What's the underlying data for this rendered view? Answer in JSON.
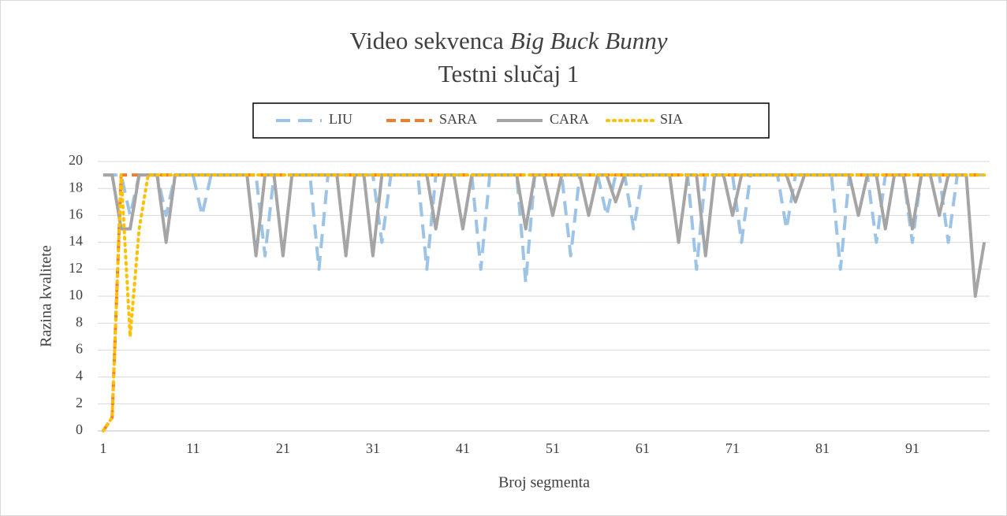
{
  "chart_data": {
    "type": "line",
    "title_parts": [
      {
        "text": "Video sekvenca",
        "italic": false
      },
      {
        "text": "Big Buck Bunny",
        "italic": true
      }
    ],
    "subtitle": "Testni slučaj 1",
    "x_label": "Broj segmenta",
    "y_label": "Razina kvalitete",
    "x": [
      1,
      2,
      3,
      4,
      5,
      6,
      7,
      8,
      9,
      10,
      11,
      12,
      13,
      14,
      15,
      16,
      17,
      18,
      19,
      20,
      21,
      22,
      23,
      24,
      25,
      26,
      27,
      28,
      29,
      30,
      31,
      32,
      33,
      34,
      35,
      36,
      37,
      38,
      39,
      40,
      41,
      42,
      43,
      44,
      45,
      46,
      47,
      48,
      49,
      50,
      51,
      52,
      53,
      54,
      55,
      56,
      57,
      58,
      59,
      60,
      61,
      62,
      63,
      64,
      65,
      66,
      67,
      68,
      69,
      70,
      71,
      72,
      73,
      74,
      75,
      76,
      77,
      78,
      79,
      80,
      81,
      82,
      83,
      84,
      85,
      86,
      87,
      88,
      89,
      90,
      91,
      92,
      93,
      94,
      95,
      96,
      97,
      98,
      99
    ],
    "xlim": [
      0.4,
      99.6
    ],
    "xticks": [
      1,
      11,
      21,
      31,
      41,
      51,
      61,
      71,
      81,
      91
    ],
    "ylim": [
      0,
      20
    ],
    "yticks": [
      0,
      2,
      4,
      6,
      8,
      10,
      12,
      14,
      16,
      18,
      20
    ],
    "grid": true,
    "legend": "top",
    "series": [
      {
        "name": "LIU",
        "color": "#9dc3e6",
        "dash": "dash",
        "values": [
          19,
          19,
          19,
          16,
          19,
          19,
          19,
          16,
          19,
          19,
          19,
          16,
          19,
          19,
          19,
          19,
          19,
          19,
          13,
          19,
          19,
          19,
          19,
          19,
          12,
          19,
          19,
          19,
          19,
          19,
          19,
          14,
          19,
          19,
          19,
          19,
          12,
          19,
          19,
          19,
          19,
          19,
          12,
          19,
          19,
          19,
          19,
          11,
          19,
          19,
          19,
          19,
          13,
          19,
          19,
          19,
          16,
          19,
          19,
          15,
          19,
          19,
          19,
          19,
          19,
          19,
          12,
          19,
          19,
          19,
          19,
          14,
          19,
          19,
          19,
          19,
          15,
          19,
          19,
          19,
          19,
          19,
          12,
          19,
          19,
          19,
          14,
          19,
          19,
          19,
          14,
          19,
          19,
          19,
          14,
          19,
          19,
          19,
          19
        ]
      },
      {
        "name": "SARA",
        "color": "#ed7d31",
        "dash": "shortdash",
        "values": [
          0,
          1,
          19,
          19,
          19,
          19,
          19,
          19,
          19,
          19,
          19,
          19,
          19,
          19,
          19,
          19,
          19,
          19,
          19,
          19,
          19,
          19,
          19,
          19,
          19,
          19,
          19,
          19,
          19,
          19,
          19,
          19,
          19,
          19,
          19,
          19,
          19,
          19,
          19,
          19,
          19,
          19,
          19,
          19,
          19,
          19,
          19,
          19,
          19,
          19,
          19,
          19,
          19,
          19,
          19,
          19,
          19,
          19,
          19,
          19,
          19,
          19,
          19,
          19,
          19,
          19,
          19,
          19,
          19,
          19,
          19,
          19,
          19,
          19,
          19,
          19,
          19,
          19,
          19,
          19,
          19,
          19,
          19,
          19,
          19,
          19,
          19,
          19,
          19,
          19,
          19,
          19,
          19,
          19,
          19,
          19,
          19,
          19,
          19
        ]
      },
      {
        "name": "CARA",
        "color": "#a5a5a5",
        "dash": "solid",
        "values": [
          19,
          19,
          15,
          15,
          19,
          19,
          19,
          14,
          19,
          19,
          19,
          19,
          19,
          19,
          19,
          19,
          19,
          13,
          19,
          19,
          13,
          19,
          19,
          19,
          19,
          19,
          19,
          13,
          19,
          19,
          13,
          19,
          19,
          19,
          19,
          19,
          19,
          15,
          19,
          19,
          15,
          19,
          19,
          19,
          19,
          19,
          19,
          15,
          19,
          19,
          16,
          19,
          19,
          19,
          16,
          19,
          19,
          17,
          19,
          19,
          19,
          19,
          19,
          19,
          14,
          19,
          19,
          13,
          19,
          19,
          16,
          19,
          19,
          19,
          19,
          19,
          19,
          17,
          19,
          19,
          19,
          19,
          19,
          19,
          16,
          19,
          19,
          15,
          19,
          19,
          15,
          19,
          19,
          16,
          19,
          19,
          19,
          10,
          14
        ]
      },
      {
        "name": "SIA",
        "color": "#ffc000",
        "dash": "dot",
        "values": [
          0,
          1,
          19,
          7,
          15,
          19,
          19,
          19,
          19,
          19,
          19,
          19,
          19,
          19,
          19,
          19,
          19,
          19,
          19,
          19,
          19,
          19,
          19,
          19,
          19,
          19,
          19,
          19,
          19,
          19,
          19,
          19,
          19,
          19,
          19,
          19,
          19,
          19,
          19,
          19,
          19,
          19,
          19,
          19,
          19,
          19,
          19,
          19,
          19,
          19,
          19,
          19,
          19,
          19,
          19,
          19,
          19,
          19,
          19,
          19,
          19,
          19,
          19,
          19,
          19,
          19,
          19,
          19,
          19,
          19,
          19,
          19,
          19,
          19,
          19,
          19,
          19,
          19,
          19,
          19,
          19,
          19,
          19,
          19,
          19,
          19,
          19,
          19,
          19,
          19,
          19,
          19,
          19,
          19,
          19,
          19,
          19,
          19,
          19
        ]
      }
    ]
  }
}
